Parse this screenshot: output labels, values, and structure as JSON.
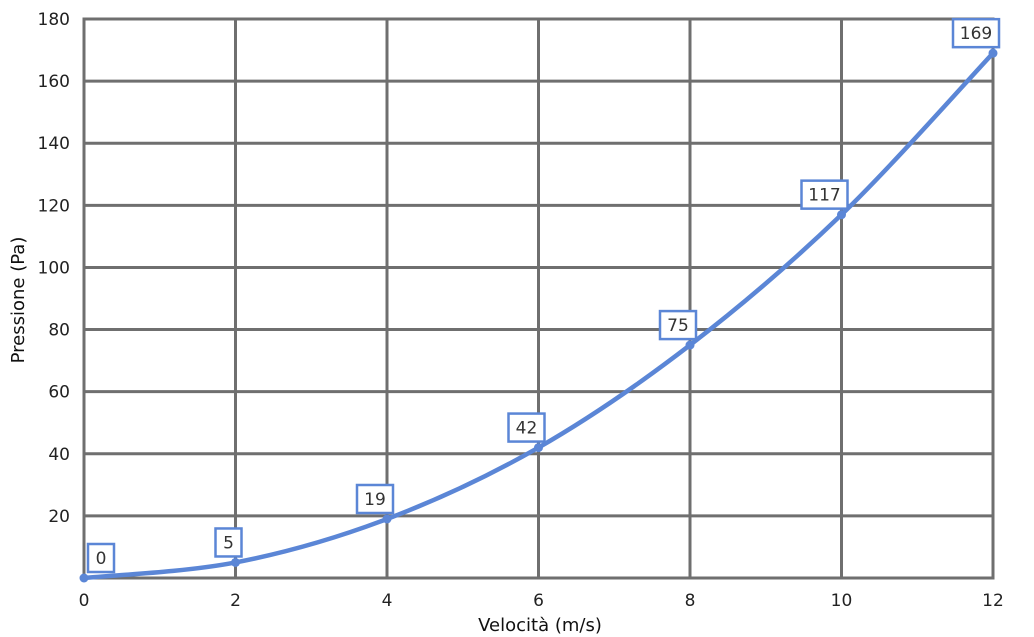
{
  "chart_data": {
    "type": "line",
    "xlabel": "Velocità (m/s)",
    "ylabel": "Pressione (Pa)",
    "xlim": [
      0,
      12
    ],
    "ylim": [
      0,
      180
    ],
    "x_ticks": [
      "0",
      "2",
      "4",
      "6",
      "8",
      "10",
      "12"
    ],
    "y_ticks": [
      "20",
      "40",
      "60",
      "80",
      "100",
      "120",
      "140",
      "160",
      "180"
    ],
    "grid": true,
    "series": [
      {
        "x": [
          0,
          2,
          4,
          6,
          8,
          10,
          12
        ],
        "values": [
          0,
          5,
          19,
          42,
          75,
          117,
          169
        ],
        "data_labels": [
          "0",
          "5",
          "19",
          "42",
          "75",
          "117",
          "169"
        ]
      }
    ],
    "colors": {
      "series": "#5b86d6",
      "grid": "#6f6f6f"
    }
  }
}
